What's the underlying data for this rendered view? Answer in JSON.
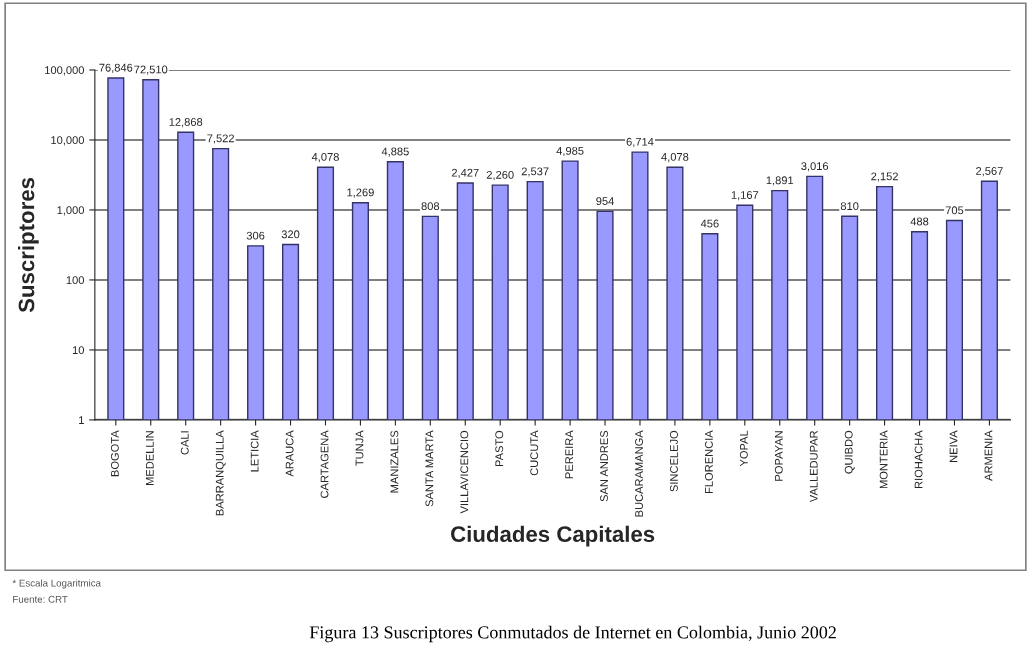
{
  "chart_data": {
    "type": "bar",
    "xlabel": "Ciudades Capitales",
    "ylabel": "Suscriptores",
    "categories": [
      "BOGOTA",
      "MEDELLIN",
      "CALI",
      "BARRANQUILLA",
      "LETICIA",
      "ARAUCA",
      "CARTAGENA",
      "TUNJA",
      "MANIZALES",
      "SANTA MARTA",
      "VILLAVICENCIO",
      "PASTO",
      "CUCUTA",
      "PEREIRA",
      "SAN ANDRES",
      "BUCARAMANGA",
      "SINCELEJO",
      "FLORENCIA",
      "YOPAL",
      "POPAYAN",
      "VALLEDUPAR",
      "QUIBDO",
      "MONTERIA",
      "RIOHACHA",
      "NEIVA",
      "ARMENIA"
    ],
    "values": [
      76846,
      72510,
      12868,
      7522,
      306,
      320,
      4078,
      1269,
      4885,
      808,
      2427,
      2260,
      2537,
      4985,
      954,
      6714,
      4078,
      456,
      1167,
      1891,
      3016,
      810,
      2152,
      488,
      705,
      2567
    ],
    "value_labels": [
      "76,846",
      "72,510",
      "12,868",
      "7,522",
      "306",
      "320",
      "4,078",
      "1,269",
      "4,885",
      "808",
      "2,427",
      "2,260",
      "2,537",
      "4,985",
      "954",
      "6,714",
      "4,078",
      "456",
      "1,167",
      "1,891",
      "3,016",
      "810",
      "2,152",
      "488",
      "705",
      "2,567"
    ],
    "color": "#9999ff",
    "log": true,
    "ylim": [
      1,
      100000
    ],
    "yticks": [
      1,
      10,
      100,
      {
        "value": 1000,
        "label": "1,000"
      },
      {
        "value": 10000,
        "label": "10,000"
      },
      {
        "value": 100000,
        "label": "100,000"
      }
    ],
    "grid": "y",
    "annotations": [
      "* Escala Logaritmica",
      "Fuente: CRT",
      "Figura 13 Suscriptores Conmutados de Internet en Colombia, Junio 2002"
    ]
  }
}
